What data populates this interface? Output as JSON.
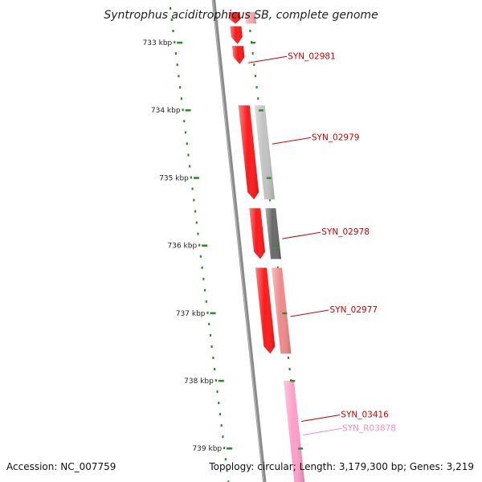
{
  "title": "Syntrophus aciditrophicus SB, complete genome",
  "footer": {
    "accession_label": "Accession:",
    "accession": "NC_007759",
    "topology_label": "Topology:",
    "topology": "circular",
    "length_label": "Length:",
    "length": "3,179,300 bp",
    "genes_label": "Genes:",
    "genes": "3,219"
  },
  "colors": {
    "backbone": "#8a8a8a",
    "tick": "#2e8b2e",
    "forward_gene": "#ff1a1a",
    "gene_label": "#cc0000",
    "rna_label": "#ff88bb"
  },
  "scale": {
    "unit": "kbp",
    "ticks": [
      {
        "value": 733,
        "label": "733 kbp"
      },
      {
        "value": 734,
        "label": "734 kbp"
      },
      {
        "value": 735,
        "label": "735 kbp"
      },
      {
        "value": 736,
        "label": "736 kbp"
      },
      {
        "value": 737,
        "label": "737 kbp"
      },
      {
        "value": 738,
        "label": "738 kbp"
      },
      {
        "value": 739,
        "label": "739 kbp"
      }
    ]
  },
  "features": [
    {
      "id": "f1",
      "name": "",
      "start": 732.55,
      "end": 732.72,
      "strand": "forward",
      "lane": 0,
      "color": "#ff1a1a"
    },
    {
      "id": "f2",
      "name": "",
      "start": 732.76,
      "end": 733.02,
      "strand": "forward",
      "lane": 0,
      "color": "#ff1a1a"
    },
    {
      "id": "f3",
      "name": "",
      "start": 733.05,
      "end": 733.32,
      "strand": "forward",
      "lane": 0,
      "color": "#ff1a1a"
    },
    {
      "id": "f4",
      "name": "",
      "start": 732.55,
      "end": 732.72,
      "strand": "none",
      "lane": 1,
      "color": "#f3a9a9"
    },
    {
      "id": "f5",
      "name": "",
      "start": 733.93,
      "end": 735.32,
      "strand": "forward",
      "lane": 0,
      "color": "#ff1a1a"
    },
    {
      "id": "f6",
      "name": "",
      "start": 735.45,
      "end": 736.2,
      "strand": "forward",
      "lane": 0,
      "color": "#ff1a1a"
    },
    {
      "id": "f7",
      "name": "",
      "start": 736.33,
      "end": 737.6,
      "strand": "forward",
      "lane": 0,
      "color": "#ff1a1a"
    },
    {
      "id": "f8",
      "name": "",
      "start": 733.93,
      "end": 735.32,
      "strand": "none",
      "lane": 1,
      "color": "#c2c2c2"
    },
    {
      "id": "f9",
      "name": "",
      "start": 735.45,
      "end": 736.2,
      "strand": "none",
      "lane": 1,
      "color": "#6a6a6a"
    },
    {
      "id": "f10",
      "name": "",
      "start": 736.33,
      "end": 737.6,
      "strand": "none",
      "lane": 1,
      "color": "#f08a8a"
    },
    {
      "id": "f11",
      "name": "",
      "start": 738.0,
      "end": 739.5,
      "strand": "none",
      "lane": 1,
      "color": "#ff9ec9"
    }
  ],
  "labels": [
    {
      "name": "SYN_02981",
      "feature": "f3",
      "at": 733.3,
      "color": "#cc0000"
    },
    {
      "name": "SYN_02979",
      "feature": "f8",
      "at": 734.5,
      "color": "#cc0000"
    },
    {
      "name": "SYN_02978",
      "feature": "f9",
      "at": 735.9,
      "color": "#cc0000"
    },
    {
      "name": "SYN_02977",
      "feature": "f10",
      "at": 737.05,
      "color": "#cc0000"
    },
    {
      "name": "SYN_03416",
      "feature": "f11",
      "at": 738.6,
      "color": "#cc0000"
    },
    {
      "name": "SYN_R03878",
      "feature": "f11",
      "at": 738.8,
      "color": "#ff88bb"
    }
  ]
}
